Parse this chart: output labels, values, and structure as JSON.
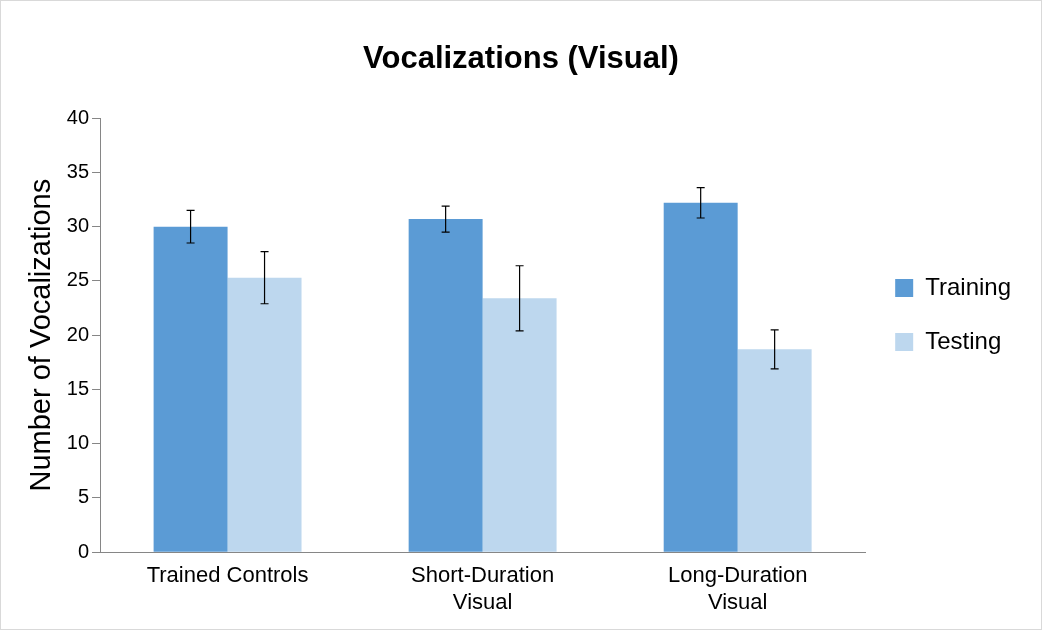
{
  "chart_data": {
    "type": "bar",
    "title": "Vocalizations (Visual)",
    "ylabel": "Number of Vocalizations",
    "categories": [
      "Trained Controls",
      "Short-Duration Visual",
      "Long-Duration Visual"
    ],
    "series": [
      {
        "name": "Training",
        "color": "#5b9bd5",
        "values": [
          30,
          30.7,
          32.2
        ],
        "errors": [
          1.5,
          1.2,
          1.4
        ]
      },
      {
        "name": "Testing",
        "color": "#bdd7ee",
        "values": [
          25.3,
          23.4,
          18.7
        ],
        "errors": [
          2.4,
          3,
          1.8
        ]
      }
    ],
    "ylim": [
      0,
      40
    ],
    "yticks": [
      0,
      5,
      10,
      15,
      20,
      25,
      30,
      35,
      40
    ],
    "grid": false,
    "legend": "right"
  }
}
